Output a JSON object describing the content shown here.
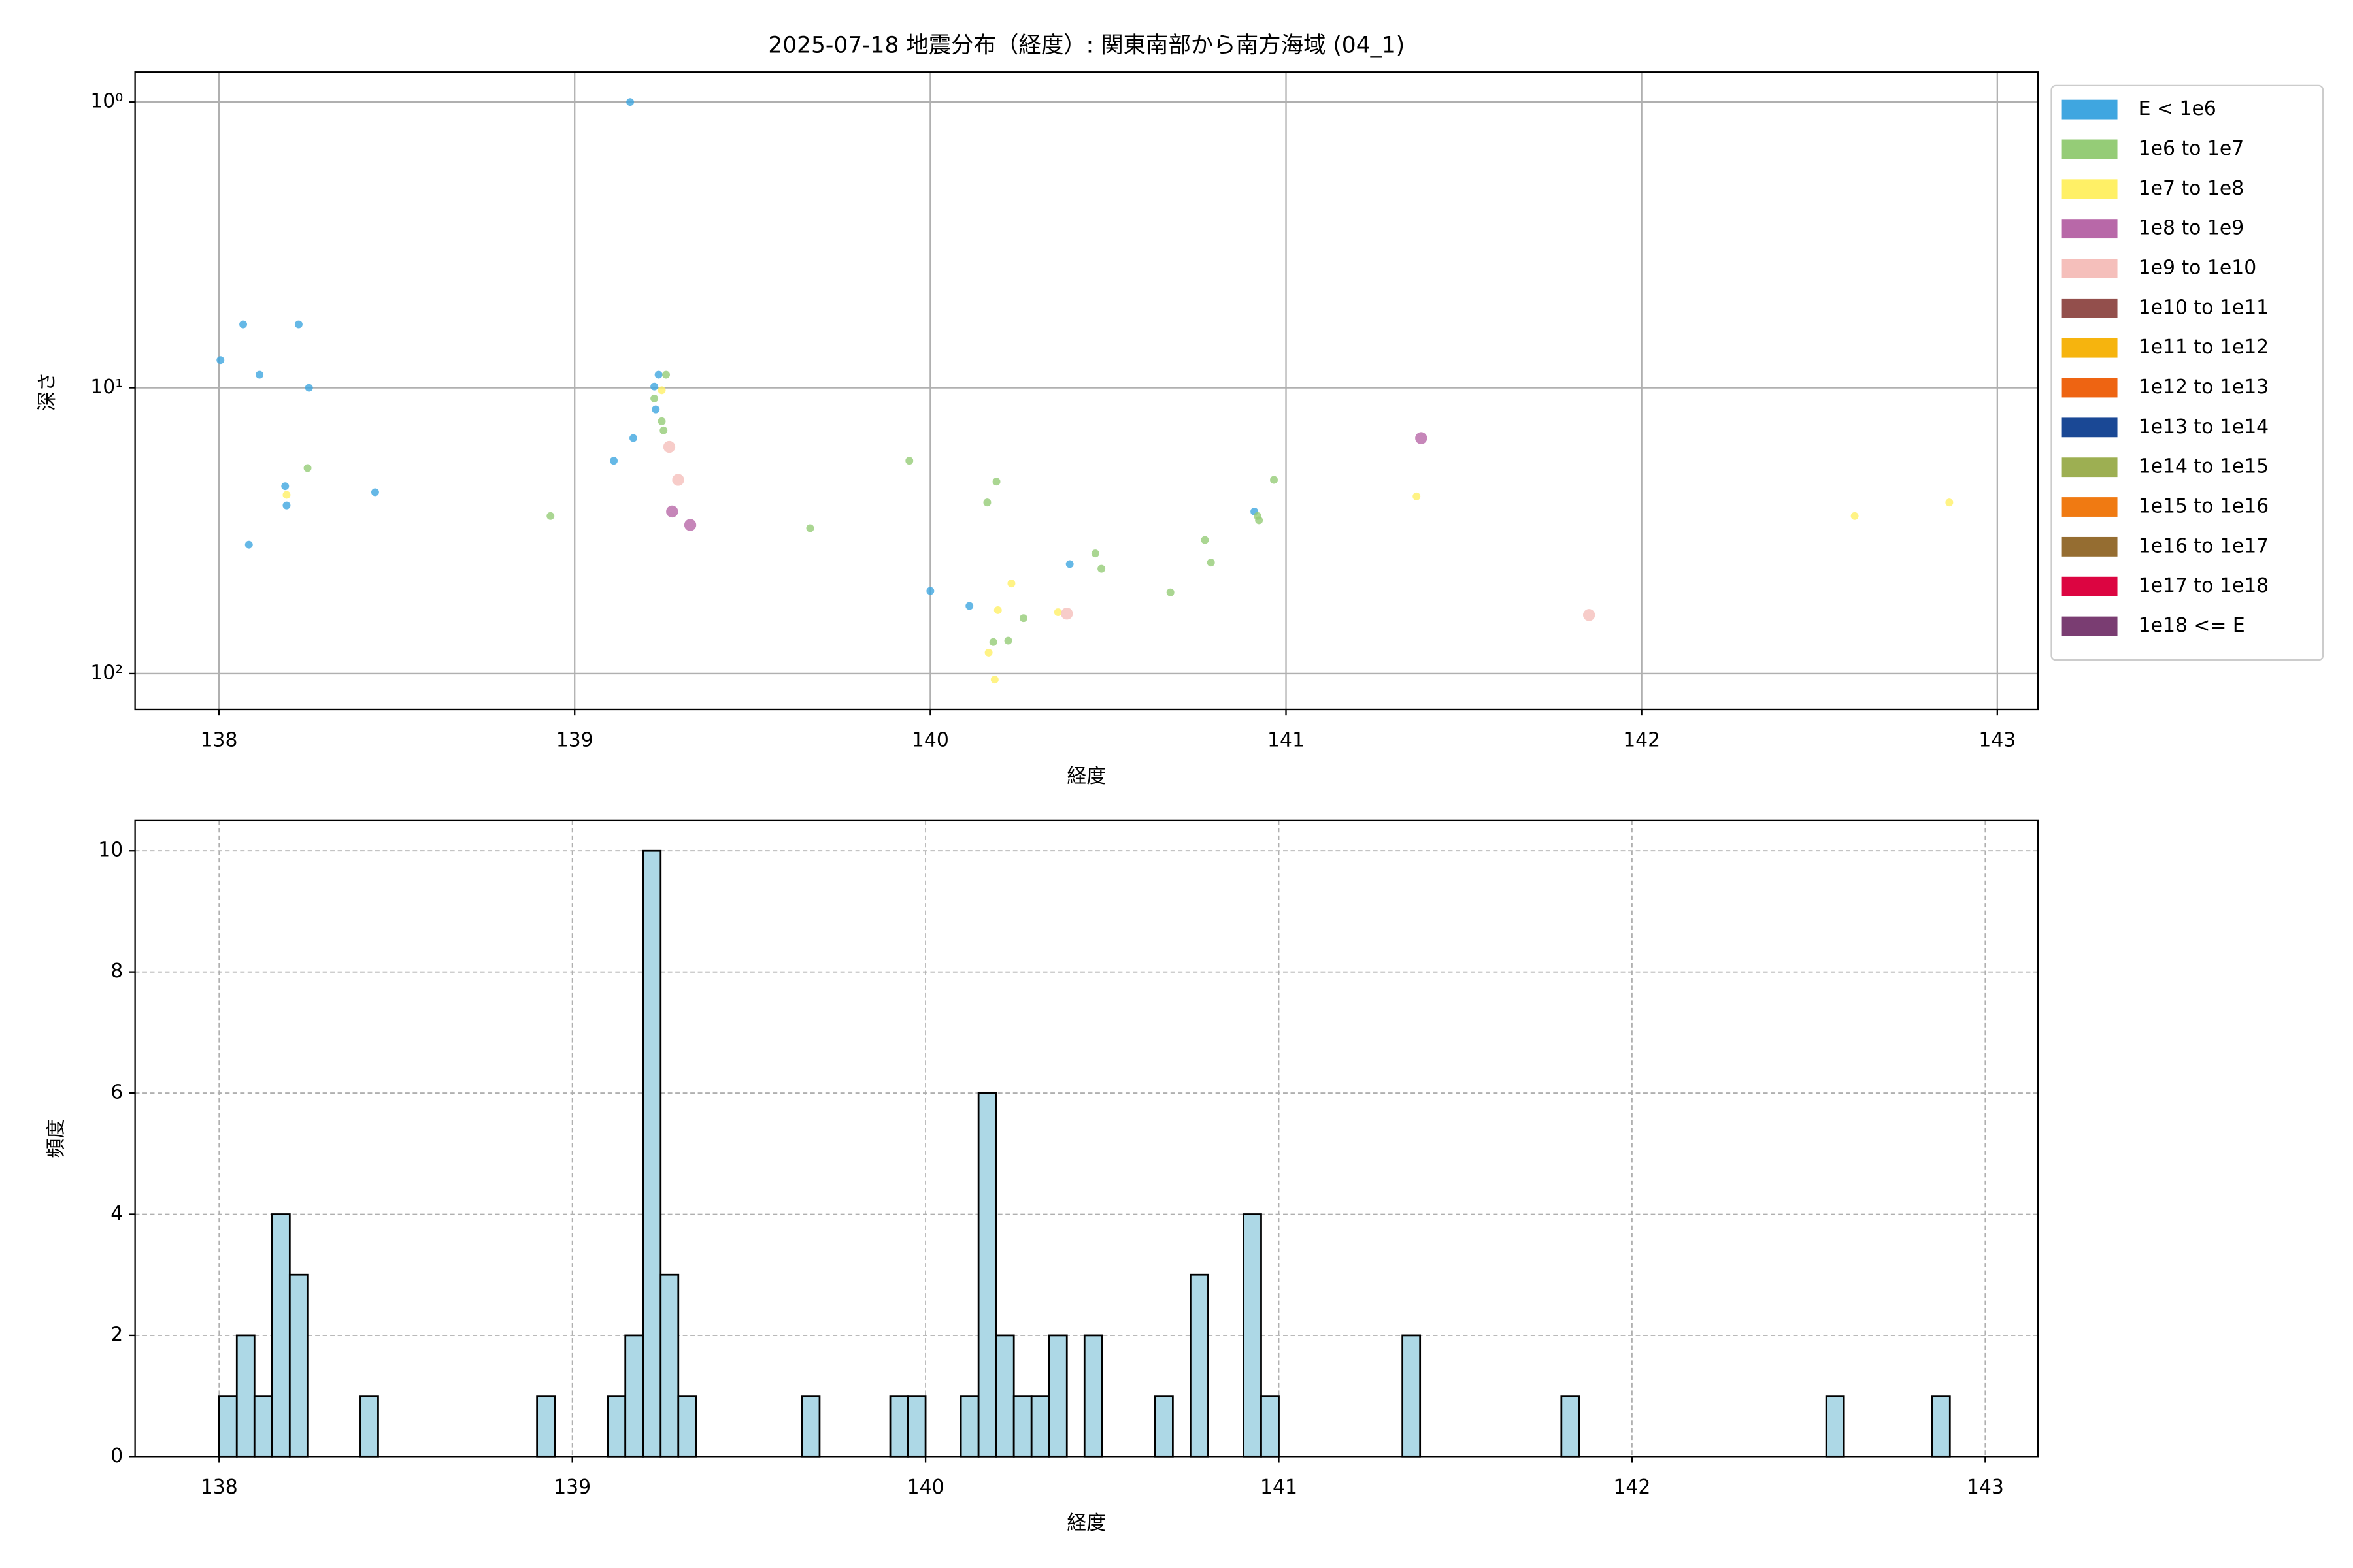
{
  "chart_data": [
    {
      "type": "scatter",
      "title": "2025-07-18 地震分布（経度）: 関東南部から南方海域 (04_1)",
      "x_label": "経度",
      "y_label": "深さ",
      "xlim": [
        137.764,
        143.114
      ],
      "xticks": [
        138,
        139,
        140,
        141,
        142,
        143
      ],
      "ylim": [
        133.6,
        0.785
      ],
      "yscale": "log",
      "yticks": [
        {
          "value": 1,
          "label": "10⁰"
        },
        {
          "value": 10,
          "label": "10¹"
        },
        {
          "value": 100,
          "label": "10²"
        }
      ],
      "grid": true,
      "legend": "outside-upper-right",
      "series": [
        {
          "name": "E < 1e6",
          "color": "#3fa6e0",
          "x": [
            138.004,
            138.068,
            138.114,
            138.224,
            138.253,
            138.084,
            138.186,
            138.19,
            138.439,
            139.156,
            139.11,
            139.165,
            139.224,
            139.228,
            139.236,
            140.0,
            140.11,
            140.392,
            140.911
          ],
          "y": [
            8.0,
            6.0,
            9.0,
            6.0,
            10.0,
            35.4,
            22.1,
            25.8,
            23.2,
            1.0,
            18.0,
            15.0,
            9.9,
            11.9,
            9.0,
            51.4,
            58,
            41.4,
            27.1
          ]
        },
        {
          "name": "1e6 to 1e7",
          "color": "#95cc77",
          "x": [
            138.249,
            138.932,
            139.224,
            139.245,
            139.25,
            139.257,
            139.662,
            139.941,
            140.16,
            140.186,
            140.177,
            140.219,
            140.262,
            140.464,
            140.481,
            140.675,
            140.772,
            140.789,
            140.92,
            140.924,
            140.966
          ],
          "y": [
            19.1,
            28.1,
            10.9,
            13.1,
            14.1,
            9.0,
            31,
            18,
            25.2,
            21.3,
            77.6,
            76.7,
            64,
            38,
            43,
            52,
            34.1,
            40.9,
            28.1,
            29.1,
            21.0
          ]
        },
        {
          "name": "1e7 to 1e8",
          "color": "#fff066",
          "x": [
            138.19,
            139.245,
            140.164,
            140.181,
            140.19,
            140.228,
            140.359,
            141.367,
            142.599,
            142.865
          ],
          "y": [
            23.7,
            10.2,
            84.5,
            105,
            60,
            48.4,
            61,
            24,
            28.1,
            25.2
          ]
        },
        {
          "name": "1e8 to 1e9",
          "color": "#b868a8",
          "x": [
            139.274,
            139.325,
            141.38
          ],
          "y": [
            27.1,
            30.2,
            15.0
          ]
        },
        {
          "name": "1e9 to 1e10",
          "color": "#f5bfbb",
          "x": [
            139.266,
            139.291,
            140.384,
            141.852
          ],
          "y": [
            16.1,
            21.0,
            61.7,
            62.4
          ]
        },
        {
          "name": "1e10 to 1e11",
          "color": "#934f4c",
          "x": [],
          "y": []
        },
        {
          "name": "1e11 to 1e12",
          "color": "#f6b40e",
          "x": [],
          "y": []
        },
        {
          "name": "1e12 to 1e13",
          "color": "#ee6412",
          "x": [],
          "y": []
        },
        {
          "name": "1e13 to 1e14",
          "color": "#1a4895",
          "x": [],
          "y": []
        },
        {
          "name": "1e14 to 1e15",
          "color": "#9daf52",
          "x": [],
          "y": []
        },
        {
          "name": "1e15 to 1e16",
          "color": "#f07a12",
          "x": [],
          "y": []
        },
        {
          "name": "1e16 to 1e17",
          "color": "#956d31",
          "x": [],
          "y": []
        },
        {
          "name": "1e17 to 1e18",
          "color": "#dc0541",
          "x": [],
          "y": []
        },
        {
          "name": "1e18 <= E",
          "color": "#7a3d72",
          "x": [],
          "y": []
        }
      ]
    },
    {
      "type": "histogram",
      "x_label": "経度",
      "y_label": "頻度",
      "xlim": [
        137.762,
        143.149
      ],
      "xticks": [
        138,
        139,
        140,
        141,
        142,
        143
      ],
      "ylim": [
        0,
        10.5
      ],
      "yticks": [
        0,
        2,
        4,
        6,
        8,
        10
      ],
      "grid": true,
      "color": "#add8e6",
      "edgecolor": "#000000",
      "bins": [
        138,
        138.05,
        138.1,
        138.15,
        138.2,
        138.25,
        138.3,
        138.35,
        138.4,
        138.45,
        138.5,
        138.55,
        138.6,
        138.65,
        138.7,
        138.75,
        138.8,
        138.85,
        138.9,
        138.95,
        139,
        139.05,
        139.1,
        139.15,
        139.2,
        139.25,
        139.3,
        139.35,
        139.4,
        139.45,
        139.5,
        139.55,
        139.6,
        139.65,
        139.7,
        139.75,
        139.8,
        139.85,
        139.9,
        139.95,
        140,
        140.05,
        140.1,
        140.15,
        140.2,
        140.25,
        140.3,
        140.35,
        140.4,
        140.45,
        140.5,
        140.55,
        140.6,
        140.65,
        140.7,
        140.75,
        140.8,
        140.85,
        140.9,
        140.95,
        141,
        141.05,
        141.1,
        141.15,
        141.2,
        141.25,
        141.3,
        141.35,
        141.4,
        141.45,
        141.5,
        141.55,
        141.6,
        141.65,
        141.7,
        141.75,
        141.8,
        141.85,
        141.9,
        141.95,
        142,
        142.05,
        142.1,
        142.15,
        142.2,
        142.25,
        142.3,
        142.35,
        142.4,
        142.45,
        142.5,
        142.55,
        142.6,
        142.65,
        142.7,
        142.75,
        142.8,
        142.85,
        142.9
      ],
      "counts": [
        1,
        2,
        1,
        4,
        3,
        0,
        0,
        0,
        1,
        0,
        0,
        0,
        0,
        0,
        0,
        0,
        0,
        0,
        1,
        0,
        0,
        0,
        1,
        2,
        10,
        3,
        1,
        0,
        0,
        0,
        0,
        0,
        0,
        1,
        0,
        0,
        0,
        0,
        1,
        1,
        0,
        0,
        1,
        6,
        2,
        1,
        1,
        2,
        0,
        2,
        0,
        0,
        0,
        1,
        0,
        3,
        0,
        0,
        4,
        1,
        0,
        0,
        0,
        0,
        0,
        0,
        0,
        2,
        0,
        0,
        0,
        0,
        0,
        0,
        0,
        0,
        1,
        0,
        0,
        0,
        0,
        0,
        0,
        0,
        0,
        0,
        0,
        0,
        0,
        0,
        0,
        1,
        0,
        0,
        0,
        0,
        0,
        1
      ]
    }
  ]
}
